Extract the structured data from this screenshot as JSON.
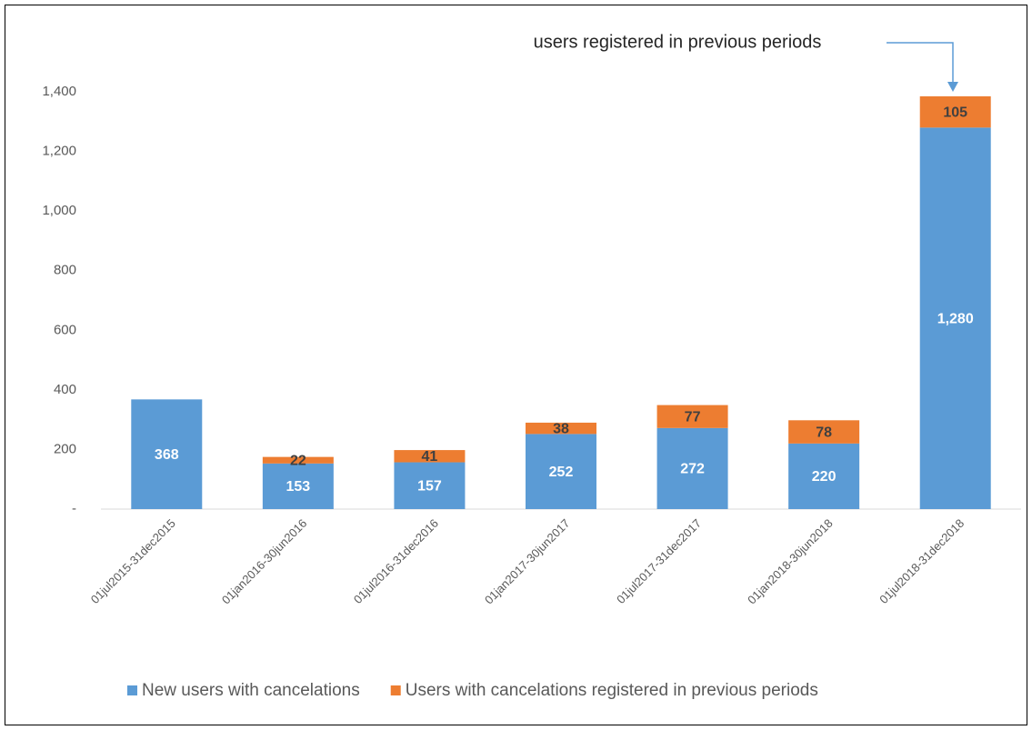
{
  "chart_data": {
    "type": "stacked_bar",
    "annotation": "users registered in previous periods",
    "categories": [
      "01jul2015-31dec2015",
      "01jan2016-30jun2016",
      "01jul2016-31dec2016",
      "01jan2017-30jun2017",
      "01jul2017-31dec2017",
      "01jan2018-30jun2018",
      "01jul2018-31dec2018"
    ],
    "series": [
      {
        "name": "New users with cancelations",
        "color": "#5b9bd5",
        "label_color": "#ffffff",
        "values": [
          368,
          153,
          157,
          252,
          272,
          220,
          1280
        ],
        "value_labels": [
          "368",
          "153",
          "157",
          "252",
          "272",
          "220",
          "1,280"
        ]
      },
      {
        "name": "Users with cancelations registered in previous periods",
        "color": "#ed7d31",
        "label_color": "#404040",
        "values": [
          null,
          22,
          41,
          38,
          77,
          78,
          105
        ],
        "value_labels": [
          null,
          "22",
          "41",
          "38",
          "77",
          "78",
          "105"
        ]
      }
    ],
    "ylim": [
      0,
      1400
    ],
    "yticks": [
      {
        "value": 0,
        "label": "-"
      },
      200,
      400,
      600,
      800,
      {
        "value": 1000,
        "label": "1,000"
      },
      {
        "value": 1200,
        "label": "1,200"
      },
      {
        "value": 1400,
        "label": "1,400"
      }
    ],
    "grid": false,
    "legend": "bottom"
  }
}
